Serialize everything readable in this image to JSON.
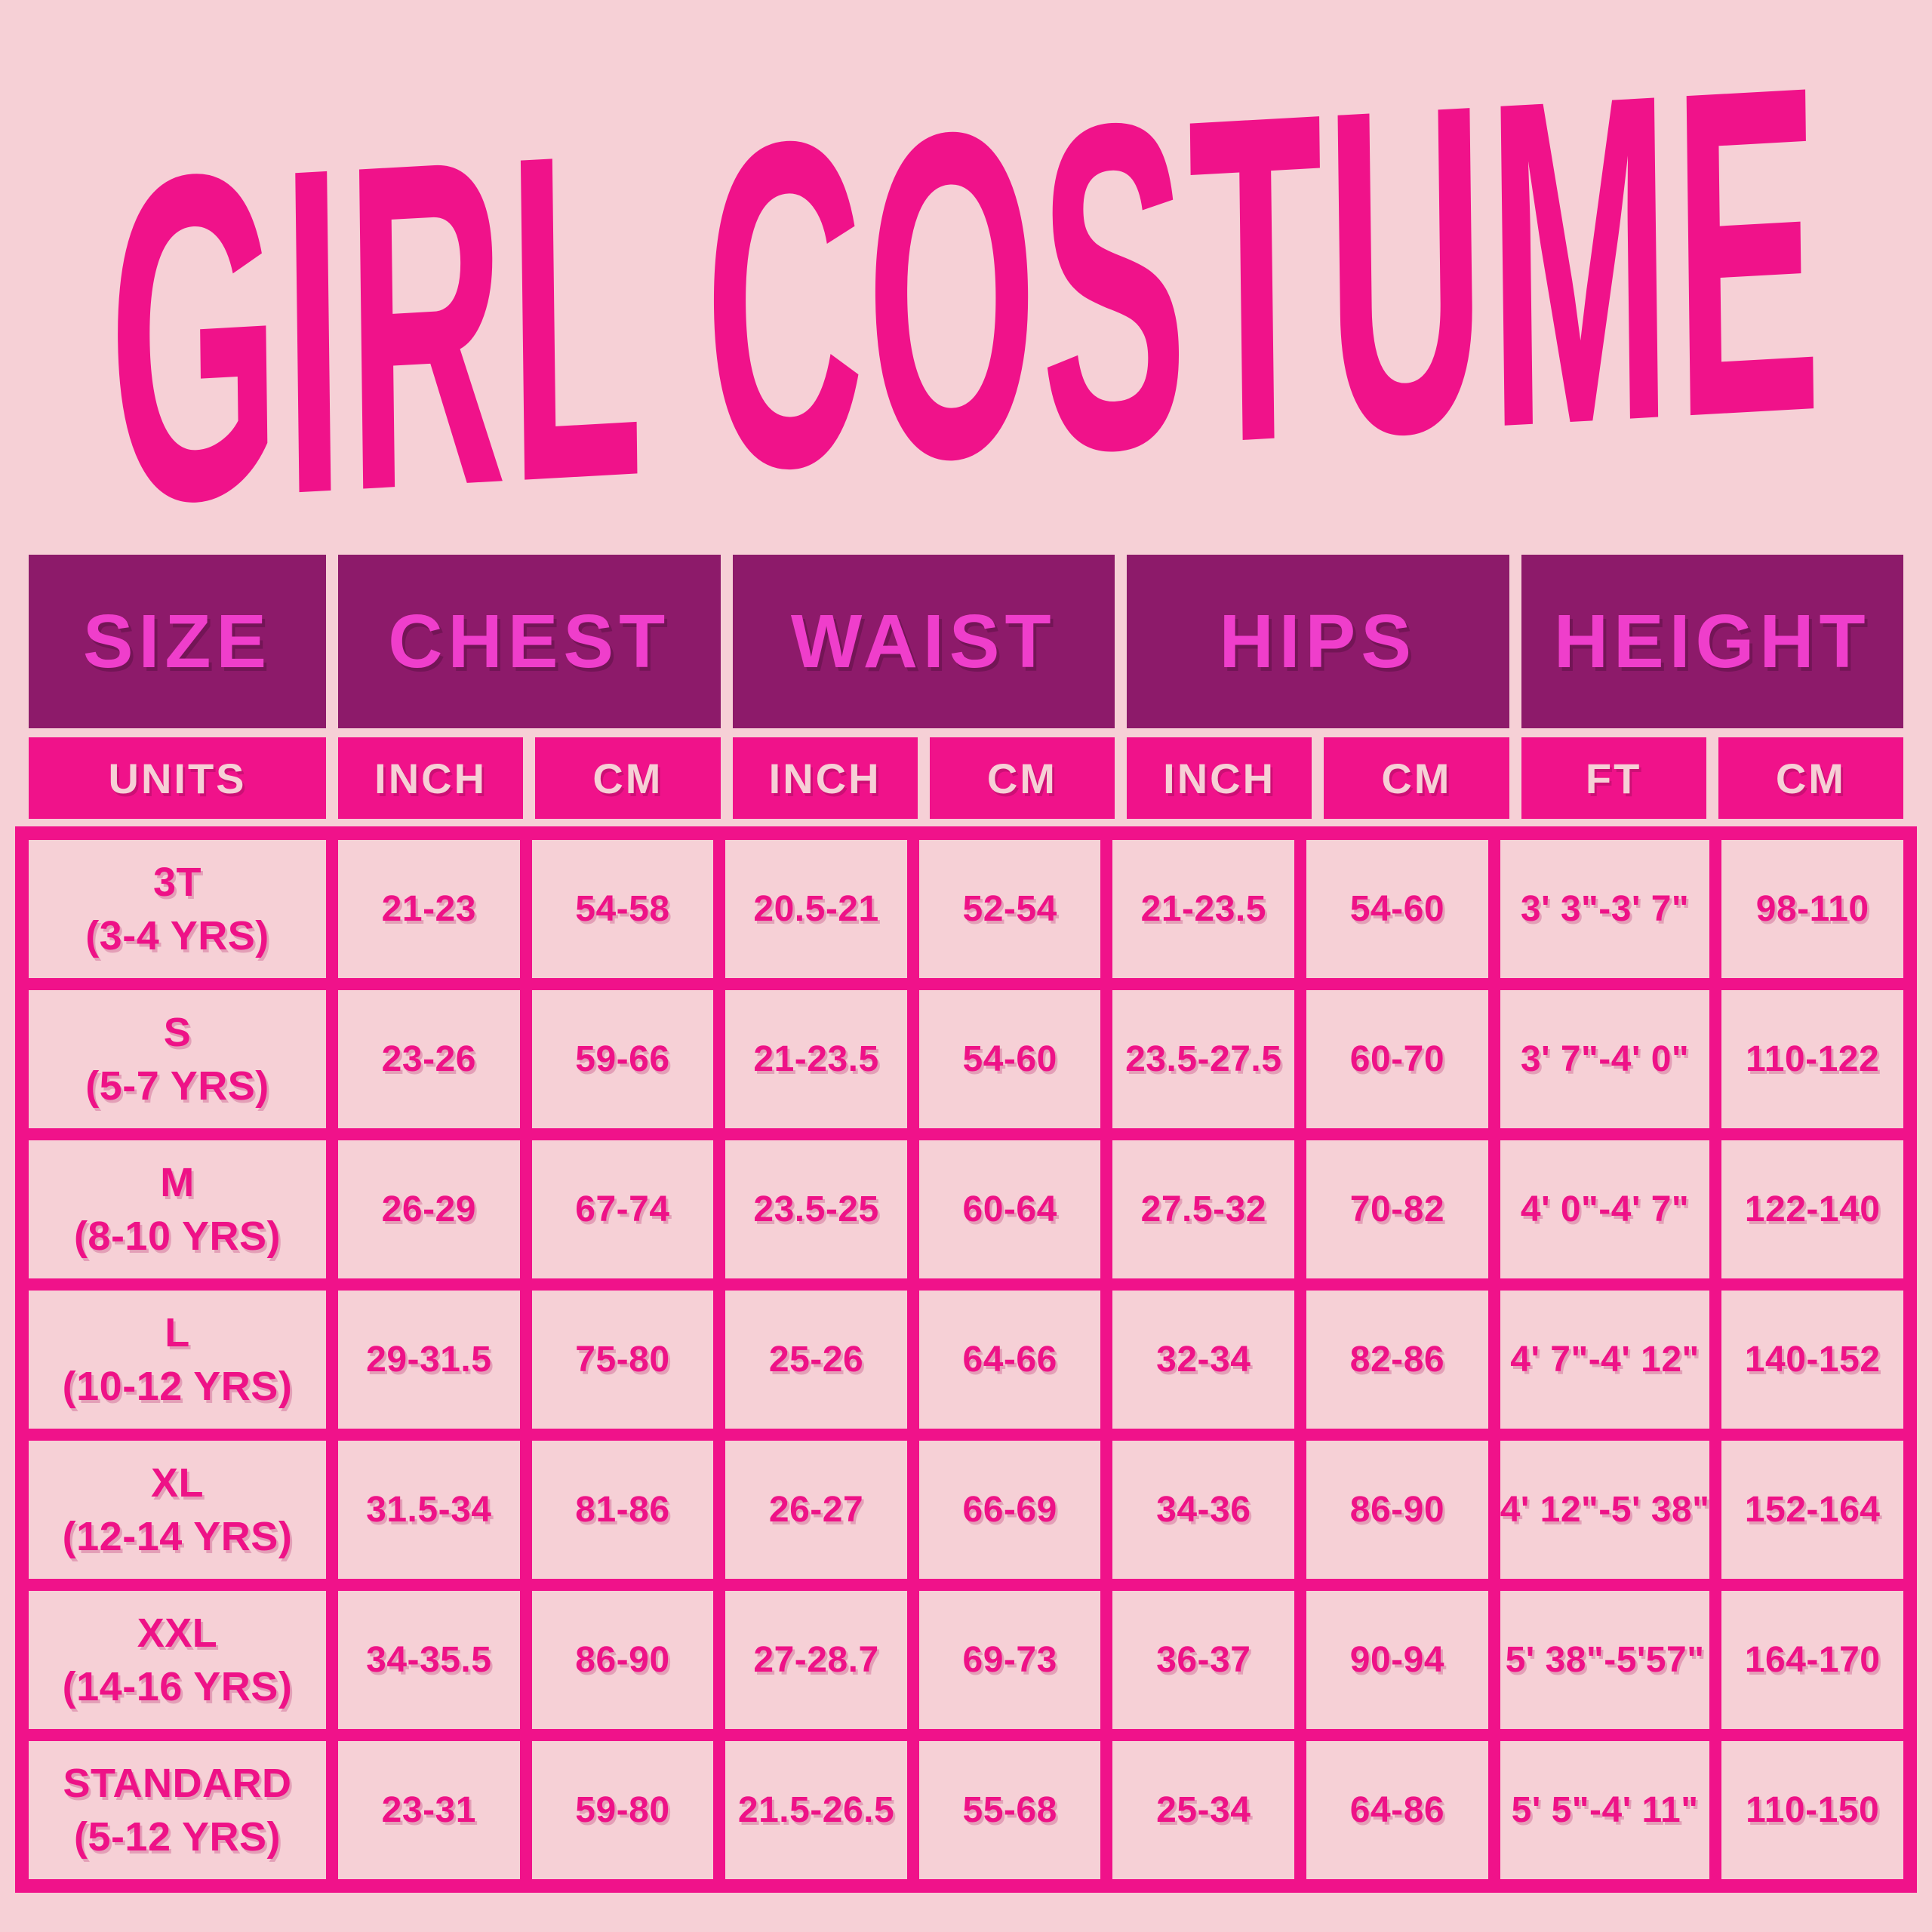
{
  "title": "GIRL COSTUME",
  "colors": {
    "background": "#f6d0d6",
    "hot_pink": "#f0128a",
    "dark_purple": "#8d1a6a",
    "header_text_magenta": "#ef3ecb",
    "cell_text_pink": "#ee1287",
    "light_pink_text": "#f6d0d6"
  },
  "table": {
    "group_headers": [
      "SIZE",
      "CHEST",
      "WAIST",
      "HIPS",
      "HEIGHT"
    ],
    "unit_headers": [
      "UNITS",
      "INCH",
      "CM",
      "INCH",
      "CM",
      "INCH",
      "CM",
      "FT",
      "CM"
    ],
    "rows": [
      {
        "size": "3T",
        "age": "(3-4 YRS)",
        "values": [
          "21-23",
          "54-58",
          "20.5-21",
          "52-54",
          "21-23.5",
          "54-60",
          "3' 3\"-3' 7\"",
          "98-110"
        ]
      },
      {
        "size": "S",
        "age": "(5-7 YRS)",
        "values": [
          "23-26",
          "59-66",
          "21-23.5",
          "54-60",
          "23.5-27.5",
          "60-70",
          "3' 7\"-4' 0\"",
          "110-122"
        ]
      },
      {
        "size": "M",
        "age": "(8-10 YRS)",
        "values": [
          "26-29",
          "67-74",
          "23.5-25",
          "60-64",
          "27.5-32",
          "70-82",
          "4' 0\"-4' 7\"",
          "122-140"
        ]
      },
      {
        "size": "L",
        "age": "(10-12 YRS)",
        "values": [
          "29-31.5",
          "75-80",
          "25-26",
          "64-66",
          "32-34",
          "82-86",
          "4' 7\"-4' 12\"",
          "140-152"
        ]
      },
      {
        "size": "XL",
        "age": "(12-14 YRS)",
        "values": [
          "31.5-34",
          "81-86",
          "26-27",
          "66-69",
          "34-36",
          "86-90",
          "4' 12\"-5' 38\"",
          "152-164"
        ]
      },
      {
        "size": "XXL",
        "age": "(14-16 YRS)",
        "values": [
          "34-35.5",
          "86-90",
          "27-28.7",
          "69-73",
          "36-37",
          "90-94",
          "5' 38\"-5'57\"",
          "164-170"
        ]
      },
      {
        "size": "STANDARD",
        "age": "(5-12 YRS)",
        "values": [
          "23-31",
          "59-80",
          "21.5-26.5",
          "55-68",
          "25-34",
          "64-86",
          "5' 5\"-4' 11\"",
          "110-150"
        ]
      }
    ]
  },
  "chart_data": {
    "type": "table",
    "title": "GIRL COSTUME",
    "column_groups": [
      "SIZE",
      "CHEST",
      "WAIST",
      "HIPS",
      "HEIGHT"
    ],
    "columns": [
      "UNITS",
      "CHEST INCH",
      "CHEST CM",
      "WAIST INCH",
      "WAIST CM",
      "HIPS INCH",
      "HIPS CM",
      "HEIGHT FT",
      "HEIGHT CM"
    ],
    "rows": [
      [
        "3T (3-4 YRS)",
        "21-23",
        "54-58",
        "20.5-21",
        "52-54",
        "21-23.5",
        "54-60",
        "3' 3\"-3' 7\"",
        "98-110"
      ],
      [
        "S (5-7 YRS)",
        "23-26",
        "59-66",
        "21-23.5",
        "54-60",
        "23.5-27.5",
        "60-70",
        "3' 7\"-4' 0\"",
        "110-122"
      ],
      [
        "M (8-10 YRS)",
        "26-29",
        "67-74",
        "23.5-25",
        "60-64",
        "27.5-32",
        "70-82",
        "4' 0\"-4' 7\"",
        "122-140"
      ],
      [
        "L (10-12 YRS)",
        "29-31.5",
        "75-80",
        "25-26",
        "64-66",
        "32-34",
        "82-86",
        "4' 7\"-4' 12\"",
        "140-152"
      ],
      [
        "XL (12-14 YRS)",
        "31.5-34",
        "81-86",
        "26-27",
        "66-69",
        "34-36",
        "86-90",
        "4' 12\"-5' 38\"",
        "152-164"
      ],
      [
        "XXL (14-16 YRS)",
        "34-35.5",
        "86-90",
        "27-28.7",
        "69-73",
        "36-37",
        "90-94",
        "5' 38\"-5'57\"",
        "164-170"
      ],
      [
        "STANDARD (5-12 YRS)",
        "23-31",
        "59-80",
        "21.5-26.5",
        "55-68",
        "25-34",
        "64-86",
        "5' 5\"-4' 11\"",
        "110-150"
      ]
    ]
  }
}
